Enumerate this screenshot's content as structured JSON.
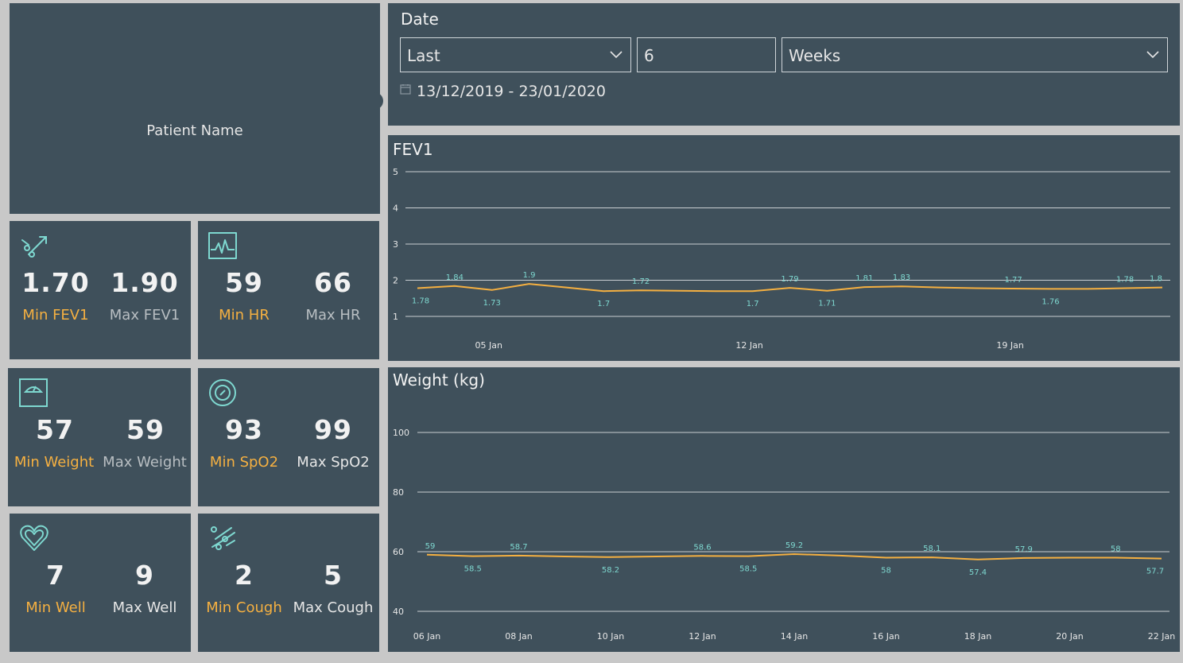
{
  "patient": {
    "name_label": "Patient Name"
  },
  "date_filter": {
    "title": "Date",
    "mode": "Last",
    "count": "6",
    "unit": "Weeks",
    "range": "13/12/2019 - 23/01/2020"
  },
  "kpis": {
    "fev1": {
      "min": "1.70",
      "max": "1.90",
      "min_label": "Min FEV1",
      "max_label": "Max FEV1",
      "icon": "lungs-icon"
    },
    "hr": {
      "min": "59",
      "max": "66",
      "min_label": "Min HR",
      "max_label": "Max HR",
      "icon": "heart-rate-icon"
    },
    "weight": {
      "min": "57",
      "max": "59",
      "min_label": "Min Weight",
      "max_label": "Max Weight",
      "icon": "scale-icon"
    },
    "spo2": {
      "min": "93",
      "max": "99",
      "min_label": "Min SpO2",
      "max_label": "Max SpO2",
      "icon": "oxygen-icon"
    },
    "well": {
      "min": "7",
      "max": "9",
      "min_label": "Min Well",
      "max_label": "Max Well",
      "icon": "heart-icon"
    },
    "cough": {
      "min": "2",
      "max": "5",
      "min_label": "Min Cough",
      "max_label": "Max Cough",
      "icon": "cough-icon"
    }
  },
  "colors": {
    "panel": "#3f505b",
    "background": "#c8c8c8",
    "accent": "#f5b041",
    "label_teal": "#7ed8d0",
    "grid": "#c9ced2"
  },
  "chart_data": [
    {
      "type": "line",
      "title": "FEV1",
      "x": [
        "03 Jan",
        "04 Jan",
        "05 Jan",
        "06 Jan",
        "07 Jan",
        "08 Jan",
        "09 Jan",
        "10 Jan",
        "11 Jan",
        "12 Jan",
        "13 Jan",
        "14 Jan",
        "15 Jan",
        "16 Jan",
        "17 Jan",
        "18 Jan",
        "19 Jan",
        "20 Jan",
        "21 Jan",
        "22 Jan",
        "23 Jan"
      ],
      "values": [
        1.78,
        1.84,
        1.73,
        1.9,
        1.8,
        1.7,
        1.72,
        1.71,
        1.7,
        1.7,
        1.79,
        1.71,
        1.81,
        1.83,
        1.8,
        1.78,
        1.77,
        1.76,
        1.76,
        1.78,
        1.8
      ],
      "labels": [
        "1.78",
        "1.84",
        "1.73",
        "1.9",
        "",
        "1.7",
        "1.72",
        "",
        "",
        "1.7",
        "1.79",
        "1.71",
        "1.81",
        "1.83",
        "",
        "",
        "1.77",
        "1.76",
        "",
        "1.78",
        "1.8"
      ],
      "x_tick_labels": [
        "05 Jan",
        "12 Jan",
        "19 Jan"
      ],
      "y_ticks": [
        1,
        2,
        3,
        4,
        5
      ],
      "ylim": [
        1,
        5
      ],
      "grid": true
    },
    {
      "type": "line",
      "title": "Weight (kg)",
      "x": [
        "06 Jan",
        "07 Jan",
        "08 Jan",
        "09 Jan",
        "10 Jan",
        "11 Jan",
        "12 Jan",
        "13 Jan",
        "14 Jan",
        "15 Jan",
        "16 Jan",
        "17 Jan",
        "18 Jan",
        "19 Jan",
        "20 Jan",
        "21 Jan",
        "22 Jan"
      ],
      "values": [
        59,
        58.5,
        58.7,
        58.4,
        58.2,
        58.4,
        58.6,
        58.5,
        59.2,
        58.7,
        58,
        58.1,
        57.4,
        57.9,
        58,
        58,
        57.7
      ],
      "labels": [
        "59",
        "58.5",
        "58.7",
        "",
        "58.2",
        "",
        "58.6",
        "58.5",
        "59.2",
        "",
        "58",
        "58.1",
        "57.4",
        "57.9",
        "",
        "58",
        "57.7"
      ],
      "x_tick_labels": [
        "06 Jan",
        "08 Jan",
        "10 Jan",
        "12 Jan",
        "14 Jan",
        "16 Jan",
        "18 Jan",
        "20 Jan",
        "22 Jan"
      ],
      "y_ticks": [
        40,
        60,
        80,
        100
      ],
      "ylim": [
        40,
        100
      ],
      "grid": true
    }
  ]
}
